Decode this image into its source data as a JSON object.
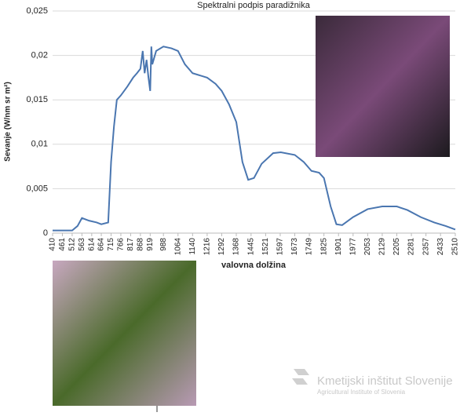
{
  "chart_data": {
    "type": "line",
    "title": "Spektralni podpis paradižnika",
    "x_label": "valovna dolžina",
    "y_label": "Sevanje (W/nm sr m²)",
    "x": [
      410,
      461,
      512,
      540,
      563,
      600,
      640,
      664,
      700,
      715,
      730,
      745,
      766,
      800,
      830,
      850,
      868,
      880,
      890,
      900,
      910,
      919,
      925,
      930,
      950,
      988,
      1030,
      1064,
      1100,
      1140,
      1216,
      1260,
      1292,
      1330,
      1368,
      1400,
      1430,
      1460,
      1500,
      1560,
      1600,
      1673,
      1720,
      1760,
      1800,
      1825,
      1860,
      1890,
      1920,
      1977,
      2053,
      2129,
      2205,
      2260,
      2330,
      2400,
      2460,
      2510
    ],
    "series": [
      {
        "name": "Sevanje",
        "color": "#4a76b0",
        "values": [
          0.0003,
          0.0003,
          0.0003,
          0.0008,
          0.0017,
          0.0014,
          0.0012,
          0.001,
          0.0012,
          0.008,
          0.012,
          0.015,
          0.0155,
          0.0165,
          0.0175,
          0.018,
          0.0185,
          0.0205,
          0.018,
          0.0195,
          0.0175,
          0.016,
          0.021,
          0.019,
          0.0205,
          0.021,
          0.0208,
          0.0205,
          0.019,
          0.018,
          0.0175,
          0.0168,
          0.016,
          0.0145,
          0.0125,
          0.008,
          0.006,
          0.0062,
          0.0078,
          0.009,
          0.0091,
          0.0088,
          0.008,
          0.007,
          0.0068,
          0.0062,
          0.003,
          0.001,
          0.0009,
          0.0018,
          0.0027,
          0.003,
          0.003,
          0.0026,
          0.0018,
          0.0012,
          0.0008,
          0.0004
        ]
      }
    ],
    "xlim": [
      410,
      2510
    ],
    "xticks": [
      410,
      461,
      512,
      563,
      614,
      664,
      715,
      766,
      817,
      868,
      919,
      988,
      1064,
      1140,
      1216,
      1292,
      1368,
      1445,
      1521,
      1597,
      1673,
      1749,
      1825,
      1901,
      1977,
      2053,
      2129,
      2205,
      2281,
      2357,
      2433,
      2510
    ],
    "ylim": [
      0,
      0.025
    ],
    "yticks": [
      0,
      {
        "value": 0.005,
        "label": "0,005"
      },
      {
        "value": 0.01,
        "label": "0,01"
      },
      {
        "value": 0.015,
        "label": "0,015"
      },
      {
        "value": 0.02,
        "label": "0,02"
      },
      {
        "value": 0.025,
        "label": "0,025"
      }
    ],
    "grid": true
  },
  "logo": {
    "name": "Kmetijski inštitut Slovenije",
    "subtitle": "Agricultural Institute of Slovenia"
  }
}
